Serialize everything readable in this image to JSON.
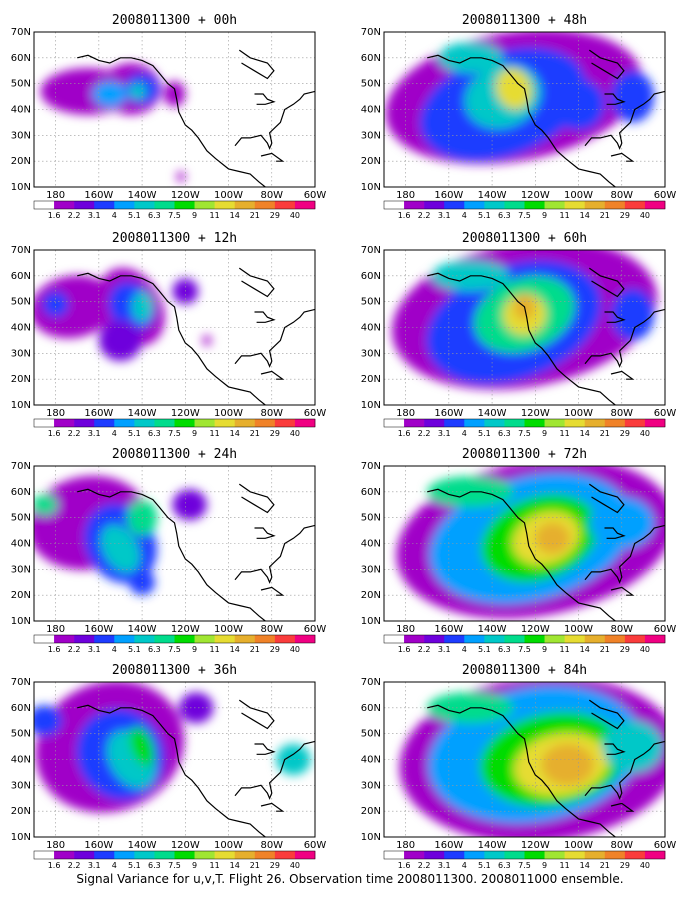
{
  "figure": {
    "caption": "Signal Variance for u,v,T. Flight 26. Observation time 2008011300. 2008011000 ensemble."
  },
  "axes": {
    "lon_ticks": [
      "180",
      "160W",
      "140W",
      "120W",
      "100W",
      "80W",
      "60W"
    ],
    "lat_ticks": [
      "70N",
      "60N",
      "50N",
      "40N",
      "30N",
      "20N",
      "10N"
    ],
    "lon_range": [
      -190,
      -60
    ],
    "lat_range": [
      10,
      70
    ]
  },
  "colorbar": {
    "labels": [
      "1.6",
      "2.2",
      "3.1",
      "4",
      "5.1",
      "6.3",
      "7.5",
      "9",
      "11",
      "14",
      "21",
      "29",
      "40"
    ],
    "colors": [
      "#ffffff",
      "#a000c8",
      "#6e00dc",
      "#1e3cff",
      "#00a0ff",
      "#00c8c8",
      "#00dc8c",
      "#00dc00",
      "#a0e632",
      "#e6dc32",
      "#e6af2d",
      "#f08228",
      "#fa3c3c",
      "#f00082"
    ]
  },
  "panels": [
    {
      "title": "2008011300 + 00h",
      "level": 0
    },
    {
      "title": "2008011300 + 12h",
      "level": 1
    },
    {
      "title": "2008011300 + 24h",
      "level": 2
    },
    {
      "title": "2008011300 + 36h",
      "level": 3
    },
    {
      "title": "2008011300 + 48h",
      "level": 4
    },
    {
      "title": "2008011300 + 60h",
      "level": 5
    },
    {
      "title": "2008011300 + 72h",
      "level": 6
    },
    {
      "title": "2008011300 + 84h",
      "level": 7
    }
  ]
}
